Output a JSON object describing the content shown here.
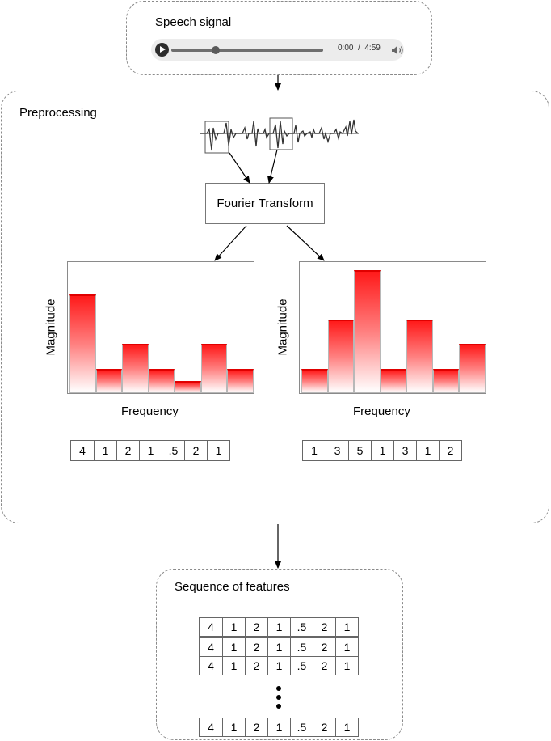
{
  "speech": {
    "title": "Speech signal",
    "time_current": "0:00",
    "time_total": "4:59",
    "progress": 0.29
  },
  "preprocessing": {
    "title": "Preprocessing",
    "fourier_label": "Fourier Transform"
  },
  "chart_data": [
    {
      "type": "bar",
      "xlabel": "Frequency",
      "ylabel": "Magnitude",
      "values": [
        4,
        1,
        2,
        1,
        0.5,
        2,
        1
      ],
      "colors": {
        "bar_top": "#ff1a1a",
        "bar_bottom": "#ffffff"
      }
    },
    {
      "type": "bar",
      "xlabel": "Frequency",
      "ylabel": "Magnitude",
      "values": [
        1,
        3,
        5,
        1,
        3,
        1,
        2
      ],
      "colors": {
        "bar_top": "#ff1a1a",
        "bar_bottom": "#ffffff"
      }
    }
  ],
  "vectors": {
    "left": [
      "4",
      "1",
      "2",
      "1",
      ".5",
      "2",
      "1"
    ],
    "right": [
      "1",
      "3",
      "5",
      "1",
      "3",
      "1",
      "2"
    ]
  },
  "sequence": {
    "title": "Sequence of features",
    "rows": [
      [
        "4",
        "1",
        "2",
        "1",
        ".5",
        "2",
        "1"
      ],
      [
        "4",
        "1",
        "2",
        "1",
        ".5",
        "2",
        "1"
      ],
      [
        "4",
        "1",
        "2",
        "1",
        ".5",
        "2",
        "1"
      ],
      [
        "4",
        "1",
        "2",
        "1",
        ".5",
        "2",
        "1"
      ]
    ]
  }
}
